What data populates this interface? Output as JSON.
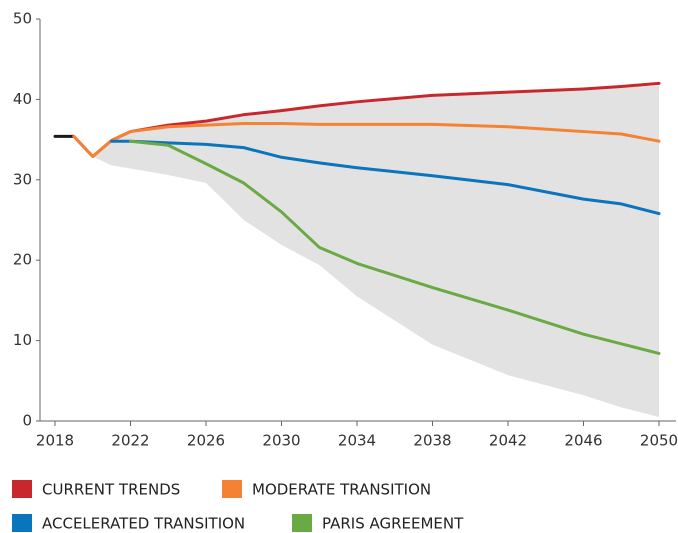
{
  "chart_data": {
    "type": "line",
    "x": [
      2018,
      2019,
      2020,
      2021,
      2022,
      2024,
      2026,
      2028,
      2030,
      2032,
      2034,
      2038,
      2042,
      2046,
      2048,
      2050
    ],
    "band": {
      "color": "#e2e2e2",
      "lower": [
        null,
        null,
        32.9,
        31.8,
        31.4,
        30.6,
        29.6,
        25.0,
        21.9,
        19.4,
        15.5,
        9.5,
        5.7,
        3.2,
        1.7,
        0.5
      ],
      "upper": [
        null,
        null,
        32.9,
        34.9,
        36.0,
        36.8,
        37.3,
        38.1,
        38.6,
        39.0,
        39.5,
        40.3,
        40.8,
        41.2,
        41.5,
        41.7
      ]
    },
    "series": [
      {
        "color": "#1a1a1a",
        "values": [
          35.4,
          35.4,
          null,
          null,
          null,
          null,
          null,
          null,
          null,
          null,
          null,
          null,
          null,
          null,
          null,
          null
        ]
      },
      {
        "name": "CURRENT TRENDS",
        "color": "#c8272e",
        "values": [
          null,
          35.4,
          32.9,
          34.9,
          36.0,
          36.8,
          37.3,
          38.1,
          38.6,
          39.2,
          39.7,
          40.5,
          40.9,
          41.3,
          41.6,
          42.0
        ]
      },
      {
        "name": "MODERATE TRANSITION",
        "color": "#f58232",
        "values": [
          null,
          35.4,
          32.9,
          34.9,
          36.0,
          36.6,
          36.8,
          37.0,
          37.0,
          36.9,
          36.9,
          36.9,
          36.6,
          36.0,
          35.7,
          34.8
        ]
      },
      {
        "name": "ACCELERATED TRANSITION",
        "color": "#0a75bc",
        "values": [
          null,
          null,
          null,
          34.8,
          34.8,
          34.6,
          34.4,
          34.0,
          32.8,
          32.1,
          31.5,
          30.5,
          29.4,
          27.6,
          27.0,
          25.8
        ]
      },
      {
        "name": "PARIS AGREEMENT",
        "color": "#6aaa44",
        "values": [
          null,
          null,
          null,
          null,
          34.8,
          34.3,
          32.0,
          29.6,
          26.0,
          21.6,
          19.6,
          16.6,
          13.8,
          10.8,
          9.6,
          8.4
        ]
      }
    ],
    "xlim": [
      2018,
      2050
    ],
    "xticks": [
      2018,
      2022,
      2026,
      2030,
      2034,
      2038,
      2042,
      2046,
      2050
    ],
    "ylim": [
      0,
      50
    ],
    "yticks": [
      0,
      10,
      20,
      30,
      40,
      50
    ]
  }
}
